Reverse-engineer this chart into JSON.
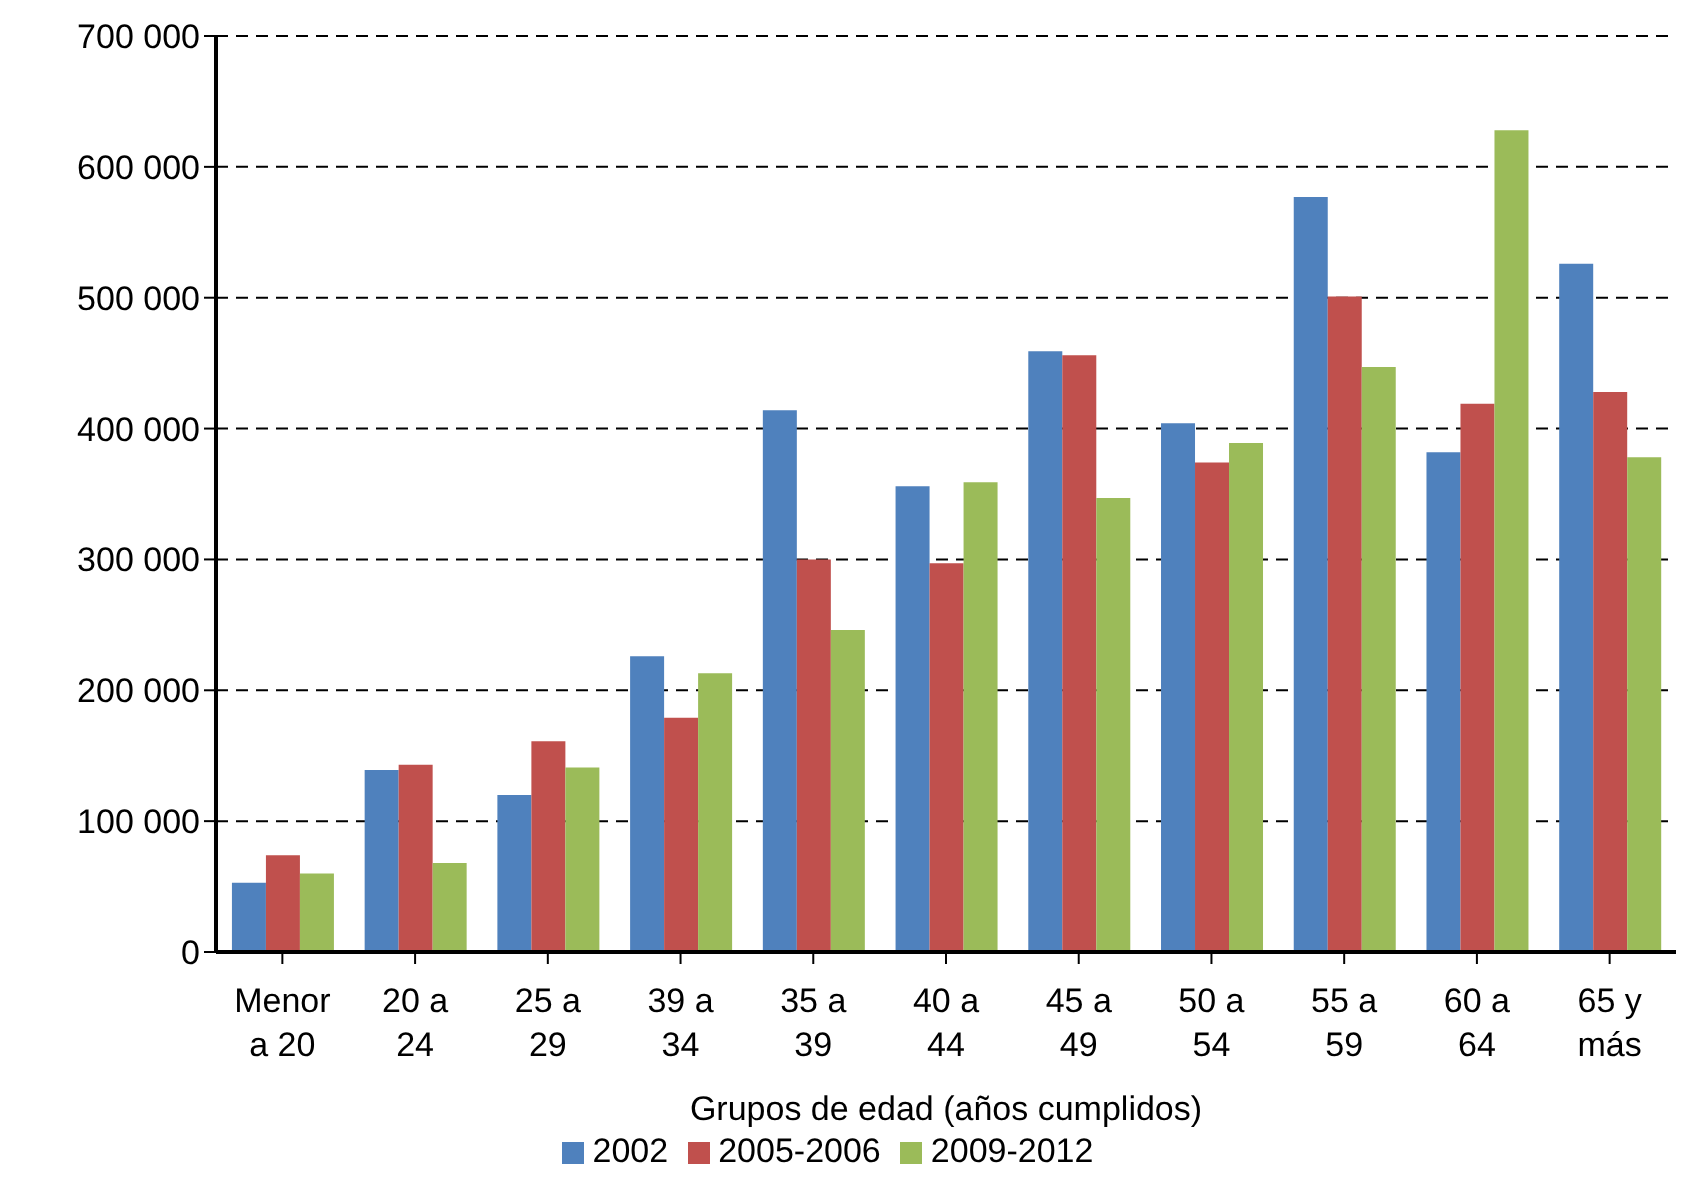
{
  "chart_data": {
    "type": "bar",
    "xlabel": "Grupos de edad (años cumplidos)",
    "categories": [
      "Menor a 20",
      "20 a 24",
      "25 a 29",
      "39 a 34",
      "35 a 39",
      "40 a 44",
      "45 a 49",
      "50 a 54",
      "55 a 59",
      "60 a 64",
      "65 y más"
    ],
    "series": [
      {
        "name": "2002",
        "color": "#4f81bd",
        "values": [
          53000,
          139000,
          120000,
          226000,
          414000,
          356000,
          459000,
          404000,
          577000,
          382000,
          526000
        ]
      },
      {
        "name": "2005-2006",
        "color": "#c0504d",
        "values": [
          74000,
          143000,
          161000,
          179000,
          300000,
          297000,
          456000,
          374000,
          501000,
          419000,
          428000
        ]
      },
      {
        "name": "2009-2012",
        "color": "#9bbb59",
        "values": [
          60000,
          68000,
          141000,
          213000,
          246000,
          359000,
          347000,
          389000,
          447000,
          628000,
          378000
        ]
      }
    ],
    "ylim": [
      0,
      700000
    ],
    "yticks": [
      {
        "value": 0,
        "label": "0"
      },
      {
        "value": 100000,
        "label": "100 000"
      },
      {
        "value": 200000,
        "label": "200 000"
      },
      {
        "value": 300000,
        "label": "300 000"
      },
      {
        "value": 400000,
        "label": "400 000"
      },
      {
        "value": 500000,
        "label": "500 000"
      },
      {
        "value": 600000,
        "label": "600 000"
      },
      {
        "value": 700000,
        "label": "700 000"
      }
    ],
    "grid": "y",
    "legend": "bottom"
  }
}
